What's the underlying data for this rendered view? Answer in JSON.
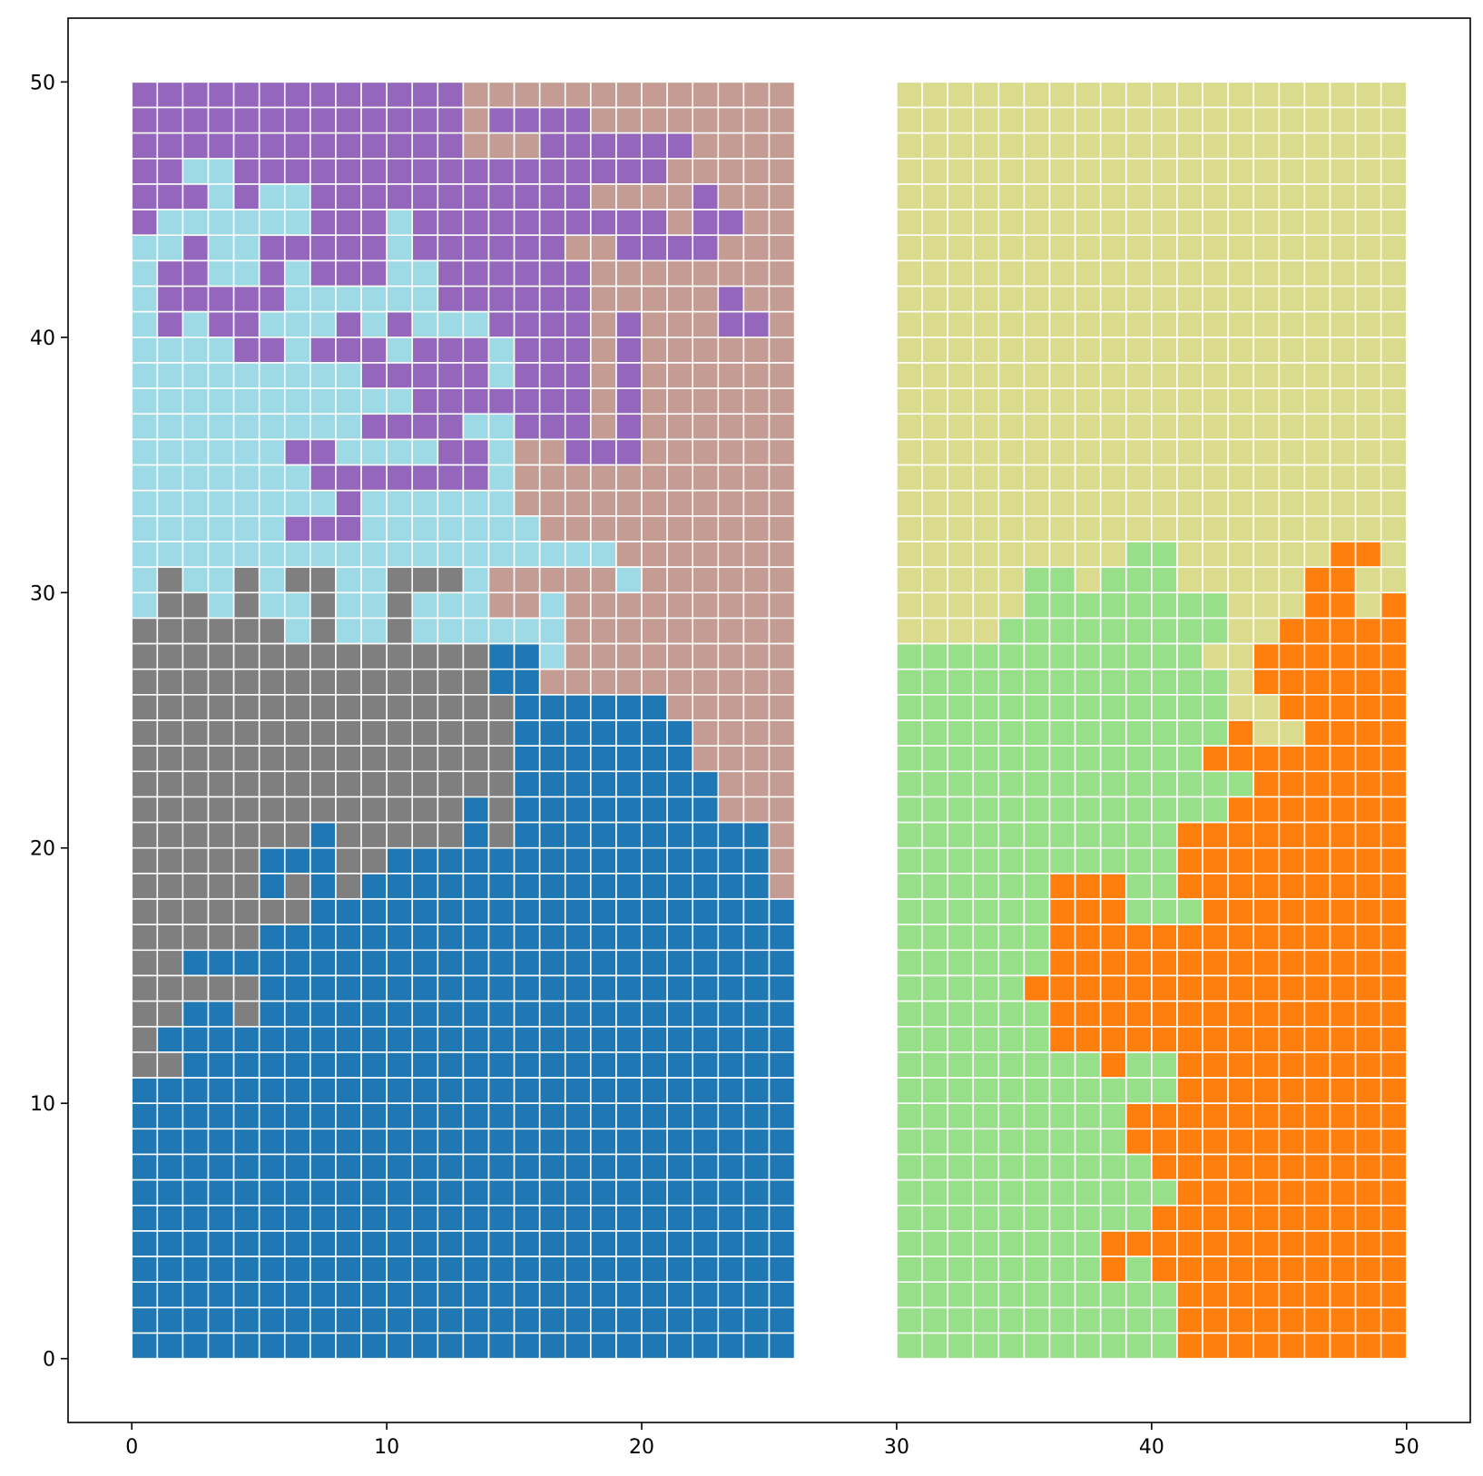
{
  "chart_data": {
    "type": "heatmap",
    "title": "",
    "xlabel": "",
    "ylabel": "",
    "xlim": [
      -2.5,
      52.5
    ],
    "ylim": [
      -2.5,
      52.5
    ],
    "xticks": [
      0,
      10,
      20,
      30,
      40,
      50
    ],
    "yticks": [
      0,
      10,
      20,
      30,
      40,
      50
    ],
    "xtick_labels": [
      "0",
      "10",
      "20",
      "30",
      "40",
      "50"
    ],
    "ytick_labels": [
      "0",
      "10",
      "20",
      "30",
      "40",
      "50"
    ],
    "grid": false,
    "cell_edge_color": "#ffffff",
    "palette": {
      "B": "#1f77b4",
      "G": "#7f7f7f",
      "C": "#9edae5",
      "P": "#9467bd",
      "R": "#c49c94",
      "Y": "#dbdb8d",
      "L": "#98df8a",
      "O": "#ff7f0e"
    },
    "panels": [
      {
        "x0": 0,
        "width": 26,
        "rows_top_to_bottom": [
          "PPPPPPPPPPPPPRRRRRRRRRRRRR",
          "PPPPPPPPPPPPPRPPPPRRRRRRRR",
          "PPPPPPPPPPPPPRRRPPPPPPRRRR",
          "PPCCPPPPPPPPPPPPPPPPPRRRRR",
          "PPPCPCCPPPPPPPPPPPRRRRPRRR",
          "PCCCCCCPPPCPPPPPPPPPPRPPRR",
          "CCPCCPPPPPCPPPPPPRRPPPPRRR",
          "CPPCCPCPPPCCPPPPPPRRRRRRRR",
          "CPPPPPCCCCCCPPPPPPRRRRRPRR",
          "CPCPPCCCPCPCCCPPPPRPRRRPPR",
          "CCCCPPCPPPCPPPCPPPRPRRRRRR",
          "CCCCCCCCCPPPPPCPPPRPRRRRRR",
          "CCCCCCCCCCCPPPPPPPRPRRRRRR",
          "CCCCCCCCCPPPPCCPPPRPRRRRRR",
          "CCCCCCPPCCCCPPCRRPPPRRRRRR",
          "CCCCCCCPPPPPPPCRRRRRRRRRRR",
          "CCCCCCCCPCCCCCCRRRRRRRRRRR",
          "CCCCCCPPPCCCCCCCRRRRRRRRRR",
          "CCCCCCCCCCCCCCCCCCCRRRRRRR",
          "CGCCGCGGCCGGGCRRRRRCRRRRRR",
          "CGGCGCCGCCGCCCRRCRRRRRRRRR",
          "GGGGGGCGCCGCCCCCCRRRRRRRRR",
          "GGGGGGGGGGGGGGBBCRRRRRRRRR",
          "GGGGGGGGGGGGGGBBRRRRRRRRRR",
          "GGGGGGGGGGGGGGGBBBBBBRRRRR",
          "GGGGGGGGGGGGGGGBBBBBBBRRRR",
          "GGGGGGGGGGGGGGGBBBBBBBRRRR",
          "GGGGGGGGGGGGGGGBBBBBBBBRRR",
          "GGGGGGGGGGGGGBGBBBBBBBBRRR",
          "GGGGGGGBGGGGGBGBBBBBBBBBBR",
          "GGGGGBBBGGBBBBBBBBBBBBBBBR",
          "GGGGGBGBGBBBBBBBBBBBBBBBBR",
          "GGGGGGGBBBBBBBBBBBBBBBBBBB",
          "GGGGGBBBBBBBBBBBBBBBBBBBBB",
          "GGBBBBBBBBBBBBBBBBBBBBBBBB",
          "GGGGGBBBBBBBBBBBBBBBBBBBBB",
          "GGBBGBBBBBBBBBBBBBBBBBBBBB",
          "GBBBBBBBBBBBBBBBBBBBBBBBBB",
          "GGBBBBBBBBBBBBBBBBBBBBBBBB",
          "BBBBBBBBBBBBBBBBBBBBBBBBBB",
          "BBBBBBBBBBBBBBBBBBBBBBBBBB",
          "BBBBBBBBBBBBBBBBBBBBBBBBBB",
          "BBBBBBBBBBBBBBBBBBBBBBBBBB",
          "BBBBBBBBBBBBBBBBBBBBBBBBBB",
          "BBBBBBBBBBBBBBBBBBBBBBBBBB",
          "BBBBBBBBBBBBBBBBBBBBBBBBBB",
          "BBBBBBBBBBBBBBBBBBBBBBBBBB",
          "BBBBBBBBBBBBBBBBBBBBBBBBBB",
          "BBBBBBBBBBBBBBBBBBBBBBBBBB",
          "BBBBBBBBBBBBBBBBBBBBBBBBBB"
        ]
      },
      {
        "x0": 30,
        "width": 20,
        "rows_top_to_bottom": [
          "YYYYYYYYYYYYYYYYYYYY",
          "YYYYYYYYYYYYYYYYYYYY",
          "YYYYYYYYYYYYYYYYYYYY",
          "YYYYYYYYYYYYYYYYYYYY",
          "YYYYYYYYYYYYYYYYYYYY",
          "YYYYYYYYYYYYYYYYYYYY",
          "YYYYYYYYYYYYYYYYYYYY",
          "YYYYYYYYYYYYYYYYYYYY",
          "YYYYYYYYYYYYYYYYYYYY",
          "YYYYYYYYYYYYYYYYYYYY",
          "YYYYYYYYYYYYYYYYYYYY",
          "YYYYYYYYYYYYYYYYYYYY",
          "YYYYYYYYYYYYYYYYYYYY",
          "YYYYYYYYYYYYYYYYYYYY",
          "YYYYYYYYYYYYYYYYYYYY",
          "YYYYYYYYYYYYYYYYYYYY",
          "YYYYYYYYYYYYYYYYYYYY",
          "YYYYYYYYYYYYYYYYYYYY",
          "YYYYYYYYYLLYYYYYYOOY",
          "YYYYYLLYLLLYYYYYOOYY",
          "YYYYYLLLLLLLLYYYOOYO",
          "YYYYLLLLLLLLLYYOOOOO",
          "LLLLLLLLLLLLYYOOOOOO",
          "LLLLLLLLLLLLLYOOOOOO",
          "LLLLLLLLLLLLLYYOOOOO",
          "LLLLLLLLLLLLLOYYOOOO",
          "LLLLLLLLLLLLOOOOOOOO",
          "LLLLLLLLLLLLLLOOOOOO",
          "LLLLLLLLLLLLLOOOOOOO",
          "LLLLLLLLLLLOOOOOOOOO",
          "LLLLLLLLLLLOOOOOOOOO",
          "LLLLLLOOOLLOOOOOOOOO",
          "LLLLLLOOOLLLOOOOOOOO",
          "LLLLLLOOOOOOOOOOOOOO",
          "LLLLLLOOOOOOOOOOOOOO",
          "LLLLLOOOOOOOOOOOOOOO",
          "LLLLLLOOOOOOOOOOOOOO",
          "LLLLLLOOOOOOOOOOOOOO",
          "LLLLLLLLOLLOOOOOOOOO",
          "LLLLLLLLLLLOOOOOOOOO",
          "LLLLLLLLLOOOOOOOOOOO",
          "LLLLLLLLLOOOOOOOOOOO",
          "LLLLLLLLLLOOOOOOOOOO",
          "LLLLLLLLLLLOOOOOOOOO",
          "LLLLLLLLLLOOOOOOOOOO",
          "LLLLLLLLOOOOOOOOOOOO",
          "LLLLLLLLOLOOOOOOOOOO",
          "LLLLLLLLLLLOOOOOOOOO",
          "LLLLLLLLLLLOOOOOOOOO",
          "LLLLLLLLLLLOOOOOOOOO"
        ]
      }
    ]
  }
}
